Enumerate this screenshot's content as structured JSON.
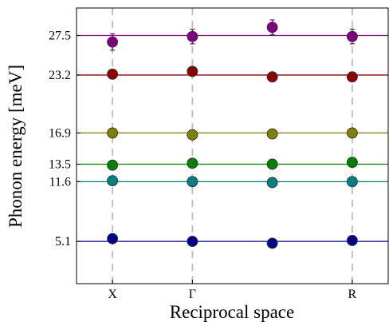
{
  "chart_data": {
    "type": "scatter",
    "xlabel": "Reciprocal space",
    "ylabel": "Phonon energy [meV]",
    "x_categories": [
      "X",
      "Γ",
      "",
      "R"
    ],
    "x_tick_labels": [
      "X",
      "Γ",
      "R"
    ],
    "x_tick_positions": [
      0,
      1,
      3
    ],
    "xlim": [
      -0.45,
      3.45
    ],
    "y_ticks": [
      5.1,
      11.6,
      13.5,
      16.9,
      23.2,
      27.5
    ],
    "y_tick_labels": [
      "5.1",
      "11.6",
      "13.5",
      "16.9",
      "23.2",
      "27.5"
    ],
    "ylim": [
      0.5,
      30.5
    ],
    "grid": "dashed vertical lines at the x tick positions",
    "legend": "none",
    "series": [
      {
        "color": "#800080",
        "reference_energy": 27.5,
        "values": [
          26.8,
          27.4,
          28.4,
          27.4
        ],
        "errors": [
          0.9,
          0.8,
          0.8,
          0.8
        ]
      },
      {
        "color": "#8b0000",
        "reference_energy": 23.2,
        "values": [
          23.3,
          23.6,
          23.0,
          23.0
        ],
        "errors": [
          0.5,
          0.5,
          0.5,
          0.4
        ]
      },
      {
        "color": "#808000",
        "reference_energy": 16.9,
        "values": [
          16.9,
          16.7,
          16.8,
          16.9
        ],
        "errors": [
          0,
          0,
          0,
          0
        ]
      },
      {
        "color": "#008000",
        "reference_energy": 13.5,
        "values": [
          13.4,
          13.6,
          13.5,
          13.7
        ],
        "errors": [
          0,
          0,
          0,
          0
        ]
      },
      {
        "color": "#008080",
        "reference_energy": 11.6,
        "values": [
          11.7,
          11.6,
          11.5,
          11.6
        ],
        "errors": [
          0,
          0,
          0,
          0
        ]
      },
      {
        "color": "#00008b",
        "reference_energy": 5.1,
        "values": [
          5.4,
          5.1,
          4.9,
          5.2
        ],
        "errors": [
          0,
          0,
          0,
          0
        ]
      }
    ]
  }
}
